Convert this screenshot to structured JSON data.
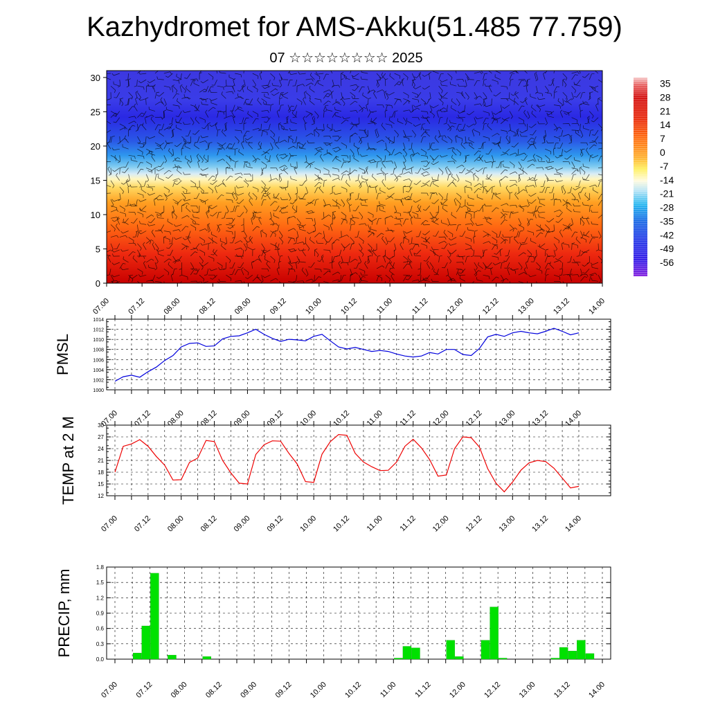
{
  "header": {
    "title": "Kazhydromet for AMS-Akku(51.485 77.759)",
    "subtitle": "07 ☆☆☆☆☆☆☆☆ 2025"
  },
  "chart_data": [
    {
      "type": "heatmap",
      "name": "cross-section",
      "x_tick_labels": [
        "07.00",
        "07.12",
        "08.00",
        "08.12",
        "09.00",
        "09.12",
        "10.00",
        "10.12",
        "11.00",
        "11.12",
        "12.00",
        "12.12",
        "13.00",
        "13.12",
        "14.00"
      ],
      "ylim": [
        0,
        31
      ],
      "y_ticks": [
        0,
        5,
        10,
        15,
        20,
        25,
        30
      ],
      "overlay": "wind barbs",
      "colorbar": {
        "labels": [
          "35",
          "28",
          "21",
          "14",
          "7",
          "0",
          "-7",
          "-14",
          "-21",
          "-28",
          "-35",
          "-42",
          "-49",
          "-56"
        ],
        "range": [
          -63,
          38
        ]
      }
    },
    {
      "type": "line",
      "ylabel": "PMSL",
      "color": "#0000dd",
      "ylim": [
        1000,
        1014
      ],
      "y_ticks": [
        1000,
        1002,
        1004,
        1006,
        1008,
        1010,
        1012,
        1014
      ],
      "x_tick_labels": [
        "07.00",
        "07.12",
        "08.00",
        "08.12",
        "09.00",
        "09.12",
        "10.00",
        "10.12",
        "11.00",
        "11.12",
        "12.00",
        "12.12",
        "13.00",
        "13.12",
        "14.00"
      ],
      "x_step_hours": 3,
      "values": [
        1001.7,
        1002.6,
        1002.9,
        1002.5,
        1003.6,
        1004.5,
        1005.8,
        1006.8,
        1008.5,
        1009.2,
        1009.3,
        1008.6,
        1008.7,
        1010.1,
        1010.6,
        1010.7,
        1011.3,
        1012.0,
        1011.0,
        1010.2,
        1009.6,
        1010.0,
        1009.9,
        1009.7,
        1010.6,
        1011.0,
        1009.7,
        1008.5,
        1008.1,
        1008.4,
        1008.0,
        1007.6,
        1007.8,
        1007.6,
        1007.1,
        1006.7,
        1006.5,
        1006.7,
        1007.4,
        1007.1,
        1008.0,
        1008.0,
        1007.0,
        1006.8,
        1008.2,
        1010.5,
        1011.0,
        1010.6,
        1011.3,
        1011.6,
        1011.3,
        1011.1,
        1011.6,
        1012.2,
        1011.6,
        1010.9,
        1011.3
      ]
    },
    {
      "type": "line",
      "ylabel": "TEMP at 2 M",
      "color": "#ee0000",
      "ylim": [
        12,
        30
      ],
      "y_ticks": [
        12,
        15,
        18,
        21,
        24,
        27,
        30
      ],
      "x_tick_labels": [
        "07.00",
        "07.12",
        "08.00",
        "08.12",
        "09.00",
        "09.12",
        "10.00",
        "10.12",
        "11.00",
        "11.12",
        "12.00",
        "12.12",
        "13.00",
        "13.12",
        "14.00"
      ],
      "x_step_hours": 3,
      "values": [
        18.0,
        24.6,
        25.2,
        26.3,
        24.6,
        22.0,
        19.8,
        16.0,
        16.1,
        20.5,
        21.6,
        26.1,
        25.8,
        21.0,
        17.8,
        15.2,
        15.0,
        22.5,
        25.0,
        26.0,
        25.9,
        22.8,
        20.1,
        15.6,
        15.4,
        22.6,
        25.8,
        27.6,
        27.4,
        22.8,
        20.6,
        19.4,
        18.4,
        18.5,
        20.6,
        24.6,
        26.4,
        24.2,
        21.2,
        17.0,
        17.3,
        24.0,
        27.0,
        26.8,
        24.4,
        18.9,
        15.2,
        13.0,
        15.5,
        18.5,
        20.4,
        21.0,
        20.7,
        19.0,
        16.5,
        14.0,
        14.4
      ]
    },
    {
      "type": "bar",
      "ylabel": "PRECIP, mm",
      "color": "#00e100",
      "ylim": [
        0,
        1.8
      ],
      "y_ticks_labels": [
        "0.0",
        "0.3",
        "0.6",
        "0.9",
        "1.2",
        "1.5",
        "1.8"
      ],
      "x_tick_labels": [
        "07.00",
        "07.12",
        "08.00",
        "08.12",
        "09.00",
        "09.12",
        "10.00",
        "10.12",
        "11.00",
        "11.12",
        "12.00",
        "12.12",
        "13.00",
        "13.12",
        "14.00"
      ],
      "x_step_hours": 3,
      "values": [
        0,
        0,
        0.12,
        0.65,
        1.68,
        0,
        0.08,
        0,
        0,
        0,
        0.05,
        0,
        0,
        0,
        0,
        0,
        0,
        0,
        0,
        0,
        0,
        0,
        0,
        0,
        0,
        0,
        0,
        0,
        0,
        0,
        0,
        0,
        0.02,
        0.25,
        0.22,
        0,
        0,
        0,
        0.37,
        0.05,
        0,
        0,
        0.37,
        1.02,
        0.02,
        0,
        0,
        0,
        0,
        0,
        0.02,
        0.23,
        0.16,
        0.37,
        0.11,
        0,
        0
      ]
    }
  ]
}
